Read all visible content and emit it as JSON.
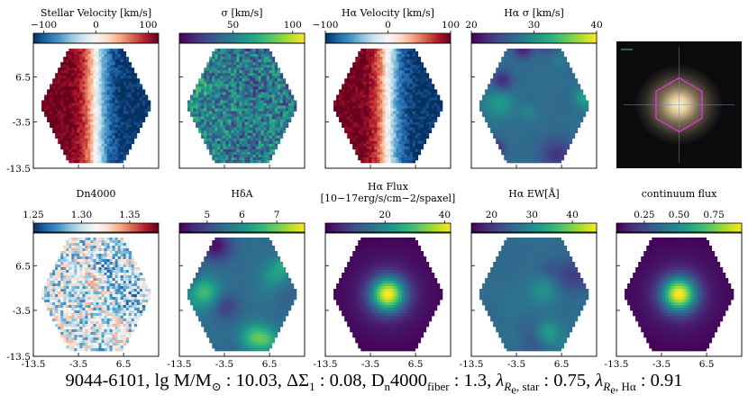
{
  "figure": {
    "galaxy_id": "9044-6101",
    "caption": {
      "id": "9044-6101,",
      "mass_label": "lg M/M",
      "mass_symbol": "⊙",
      "mass_value": ": 10.03,",
      "dsigma_label": "ΔΣ",
      "dsigma_sub": "1",
      "dsigma_value": ": 0.08,",
      "dn_label": "D",
      "dn_sub": "n",
      "dn_suffix": "4000",
      "dn_fiber_sub": "fiber",
      "dn_value": ": 1.3,",
      "lambda1": "λ",
      "lambda1_sub": "R",
      "lambda1_subsub": "e",
      "lambda1_tail": ", star",
      "lambda1_value": ": 0.75,",
      "lambda2": "λ",
      "lambda2_sub": "R",
      "lambda2_subsub": "e",
      "lambda2_tail": ", Hα",
      "lambda2_value": ": 0.91"
    },
    "axis_ticks": {
      "y": [
        "6.5",
        "-3.5",
        "-13.5"
      ],
      "x": [
        "-13.5",
        "-3.5",
        "6.5"
      ]
    },
    "panels": [
      {
        "key": "stellar_vel",
        "title": "Stellar Velocity [km/s]",
        "colormap": "RdBu_r",
        "ticks": [
          "−100",
          "0",
          "100"
        ],
        "tick_values": [
          -100,
          0,
          100
        ],
        "range": [
          -120,
          120
        ],
        "pattern": "velocity"
      },
      {
        "key": "sigma",
        "title": "σ [km/s]",
        "colormap": "viridis",
        "ticks": [
          "50",
          "100"
        ],
        "tick_values": [
          50,
          100
        ],
        "range": [
          5,
          110
        ],
        "pattern": "noise"
      },
      {
        "key": "ha_vel",
        "title": "Hα Velocity [km/s]",
        "colormap": "RdBu_r",
        "ticks": [
          "−100",
          "0",
          "100"
        ],
        "tick_values": [
          -100,
          0,
          100
        ],
        "range": [
          -100,
          100
        ],
        "pattern": "velocity"
      },
      {
        "key": "ha_sigma",
        "title": "Hα σ [km/s]",
        "colormap": "viridis",
        "ticks": [
          "20",
          "30",
          "40"
        ],
        "tick_values": [
          20,
          30,
          40
        ],
        "range": [
          20,
          40
        ],
        "pattern": "blobs"
      },
      {
        "key": "dn4000",
        "title": "Dn4000",
        "colormap": "RdBu_r",
        "ticks": [
          "1.25",
          "1.30",
          "1.35"
        ],
        "tick_values": [
          1.25,
          1.3,
          1.35
        ],
        "range": [
          1.25,
          1.38
        ],
        "pattern": "noise"
      },
      {
        "key": "hdelta",
        "title": "HδA",
        "colormap": "viridis",
        "ticks": [
          "5",
          "6",
          "7"
        ],
        "tick_values": [
          5,
          6,
          7
        ],
        "range": [
          4.2,
          7.8
        ],
        "pattern": "blobs"
      },
      {
        "key": "ha_flux",
        "title": "Hα Flux",
        "title2": "[10−17erg/s/cm−2/spaxel]",
        "colormap": "viridis",
        "ticks": [
          "20",
          "40"
        ],
        "tick_values": [
          20,
          40
        ],
        "range": [
          0,
          42
        ],
        "pattern": "centered"
      },
      {
        "key": "ha_ew",
        "title": "Hα EW[Å]",
        "colormap": "viridis",
        "ticks": [
          "20",
          "30",
          "40"
        ],
        "tick_values": [
          20,
          30,
          40
        ],
        "range": [
          15,
          46
        ],
        "pattern": "blobs"
      },
      {
        "key": "cont_flux",
        "title": "continuum flux",
        "colormap": "viridis",
        "ticks": [
          "0.25",
          "0.50",
          "0.75"
        ],
        "tick_values": [
          0.25,
          0.5,
          0.75
        ],
        "range": [
          0.05,
          0.95
        ],
        "pattern": "centered"
      }
    ],
    "colors": {
      "hexagon": "#d63ad6",
      "viridis_low": "#440154",
      "viridis_high": "#fde725",
      "rdbu_low": "#2166ac",
      "rdbu_high": "#b2182b"
    }
  }
}
